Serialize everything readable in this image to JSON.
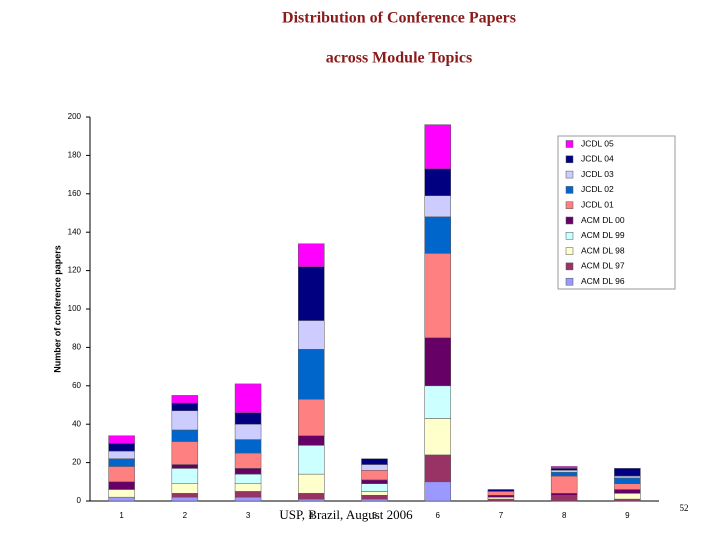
{
  "slide": {
    "title_lines": [
      "Distribution of Conference Papers",
      "across Module Topics"
    ],
    "footer": "USP, Brazil, August 2006",
    "page_number": "52"
  },
  "chart_data": {
    "type": "stacked_bar",
    "y_label": "Number of conference papers",
    "categories": [
      "1",
      "2",
      "3",
      "4",
      "5",
      "6",
      "7",
      "8",
      "9"
    ],
    "ylim": [
      0,
      200
    ],
    "yticks": [
      0,
      20,
      40,
      60,
      80,
      100,
      120,
      140,
      160,
      180,
      200
    ],
    "grid": false,
    "legend": "upper right",
    "series": [
      {
        "name": "ACM DL 96",
        "color": "#9999ff",
        "values": [
          2,
          2,
          2,
          1,
          1,
          10,
          0,
          0,
          0
        ]
      },
      {
        "name": "ACM DL 97",
        "color": "#993366",
        "values": [
          0,
          2,
          3,
          3,
          2,
          14,
          1,
          3,
          1
        ]
      },
      {
        "name": "ACM DL 98",
        "color": "#ffffcc",
        "values": [
          4,
          5,
          4,
          10,
          2,
          19,
          1,
          0,
          3
        ]
      },
      {
        "name": "ACM DL 99",
        "color": "#ccffff",
        "values": [
          0,
          8,
          5,
          15,
          4,
          17,
          0,
          0,
          0
        ]
      },
      {
        "name": "ACM DL 00",
        "color": "#660066",
        "values": [
          4,
          2,
          3,
          5,
          2,
          25,
          1,
          1,
          2
        ]
      },
      {
        "name": "JCDL 01",
        "color": "#ff8080",
        "values": [
          8,
          12,
          8,
          19,
          5,
          44,
          2,
          9,
          3
        ]
      },
      {
        "name": "JCDL 02",
        "color": "#0066cc",
        "values": [
          4,
          6,
          7,
          26,
          0,
          19,
          0,
          2,
          3
        ]
      },
      {
        "name": "JCDL 03",
        "color": "#ccccff",
        "values": [
          4,
          10,
          8,
          15,
          3,
          11,
          0,
          1,
          1
        ]
      },
      {
        "name": "JCDL 04",
        "color": "#000080",
        "values": [
          4,
          4,
          6,
          28,
          3,
          14,
          1,
          1,
          4
        ]
      },
      {
        "name": "JCDL 05",
        "color": "#ff00ff",
        "values": [
          4,
          4,
          15,
          12,
          0,
          23,
          0,
          1,
          0
        ]
      }
    ]
  }
}
